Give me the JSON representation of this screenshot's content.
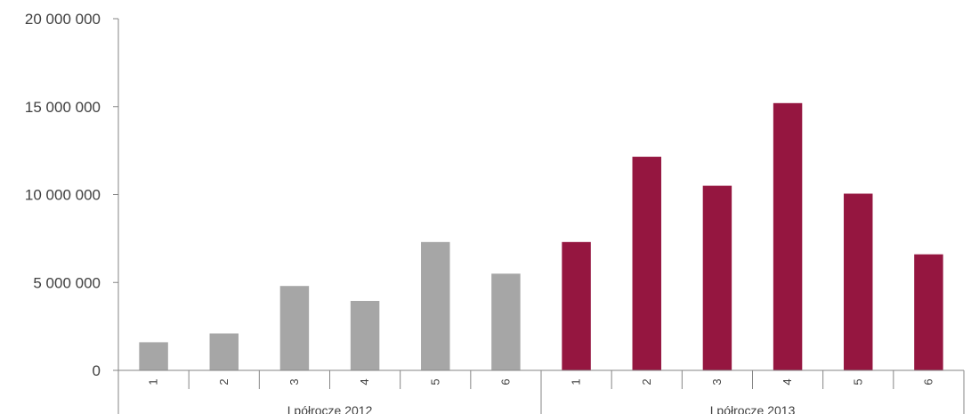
{
  "chart_data": {
    "type": "bar",
    "title": "",
    "xlabel": "",
    "ylabel": "",
    "ylim": [
      0,
      20000000
    ],
    "yticks": [
      0,
      5000000,
      10000000,
      15000000,
      20000000
    ],
    "ytick_labels": [
      "0",
      "5 000 000",
      "10 000 000",
      "15 000 000",
      "20 000 000"
    ],
    "groups": [
      {
        "label": "I półrocze 2012",
        "color": "#a6a6a6",
        "categories": [
          "1",
          "2",
          "3",
          "4",
          "5",
          "6"
        ],
        "values": [
          1600000,
          2100000,
          4800000,
          3950000,
          7300000,
          5500000
        ]
      },
      {
        "label": "I półrocze 2013",
        "color": "#951640",
        "categories": [
          "1",
          "2",
          "3",
          "4",
          "5",
          "6"
        ],
        "values": [
          7300000,
          12150000,
          10500000,
          15200000,
          10050000,
          6600000
        ]
      }
    ],
    "grid": false,
    "legend": "none"
  }
}
